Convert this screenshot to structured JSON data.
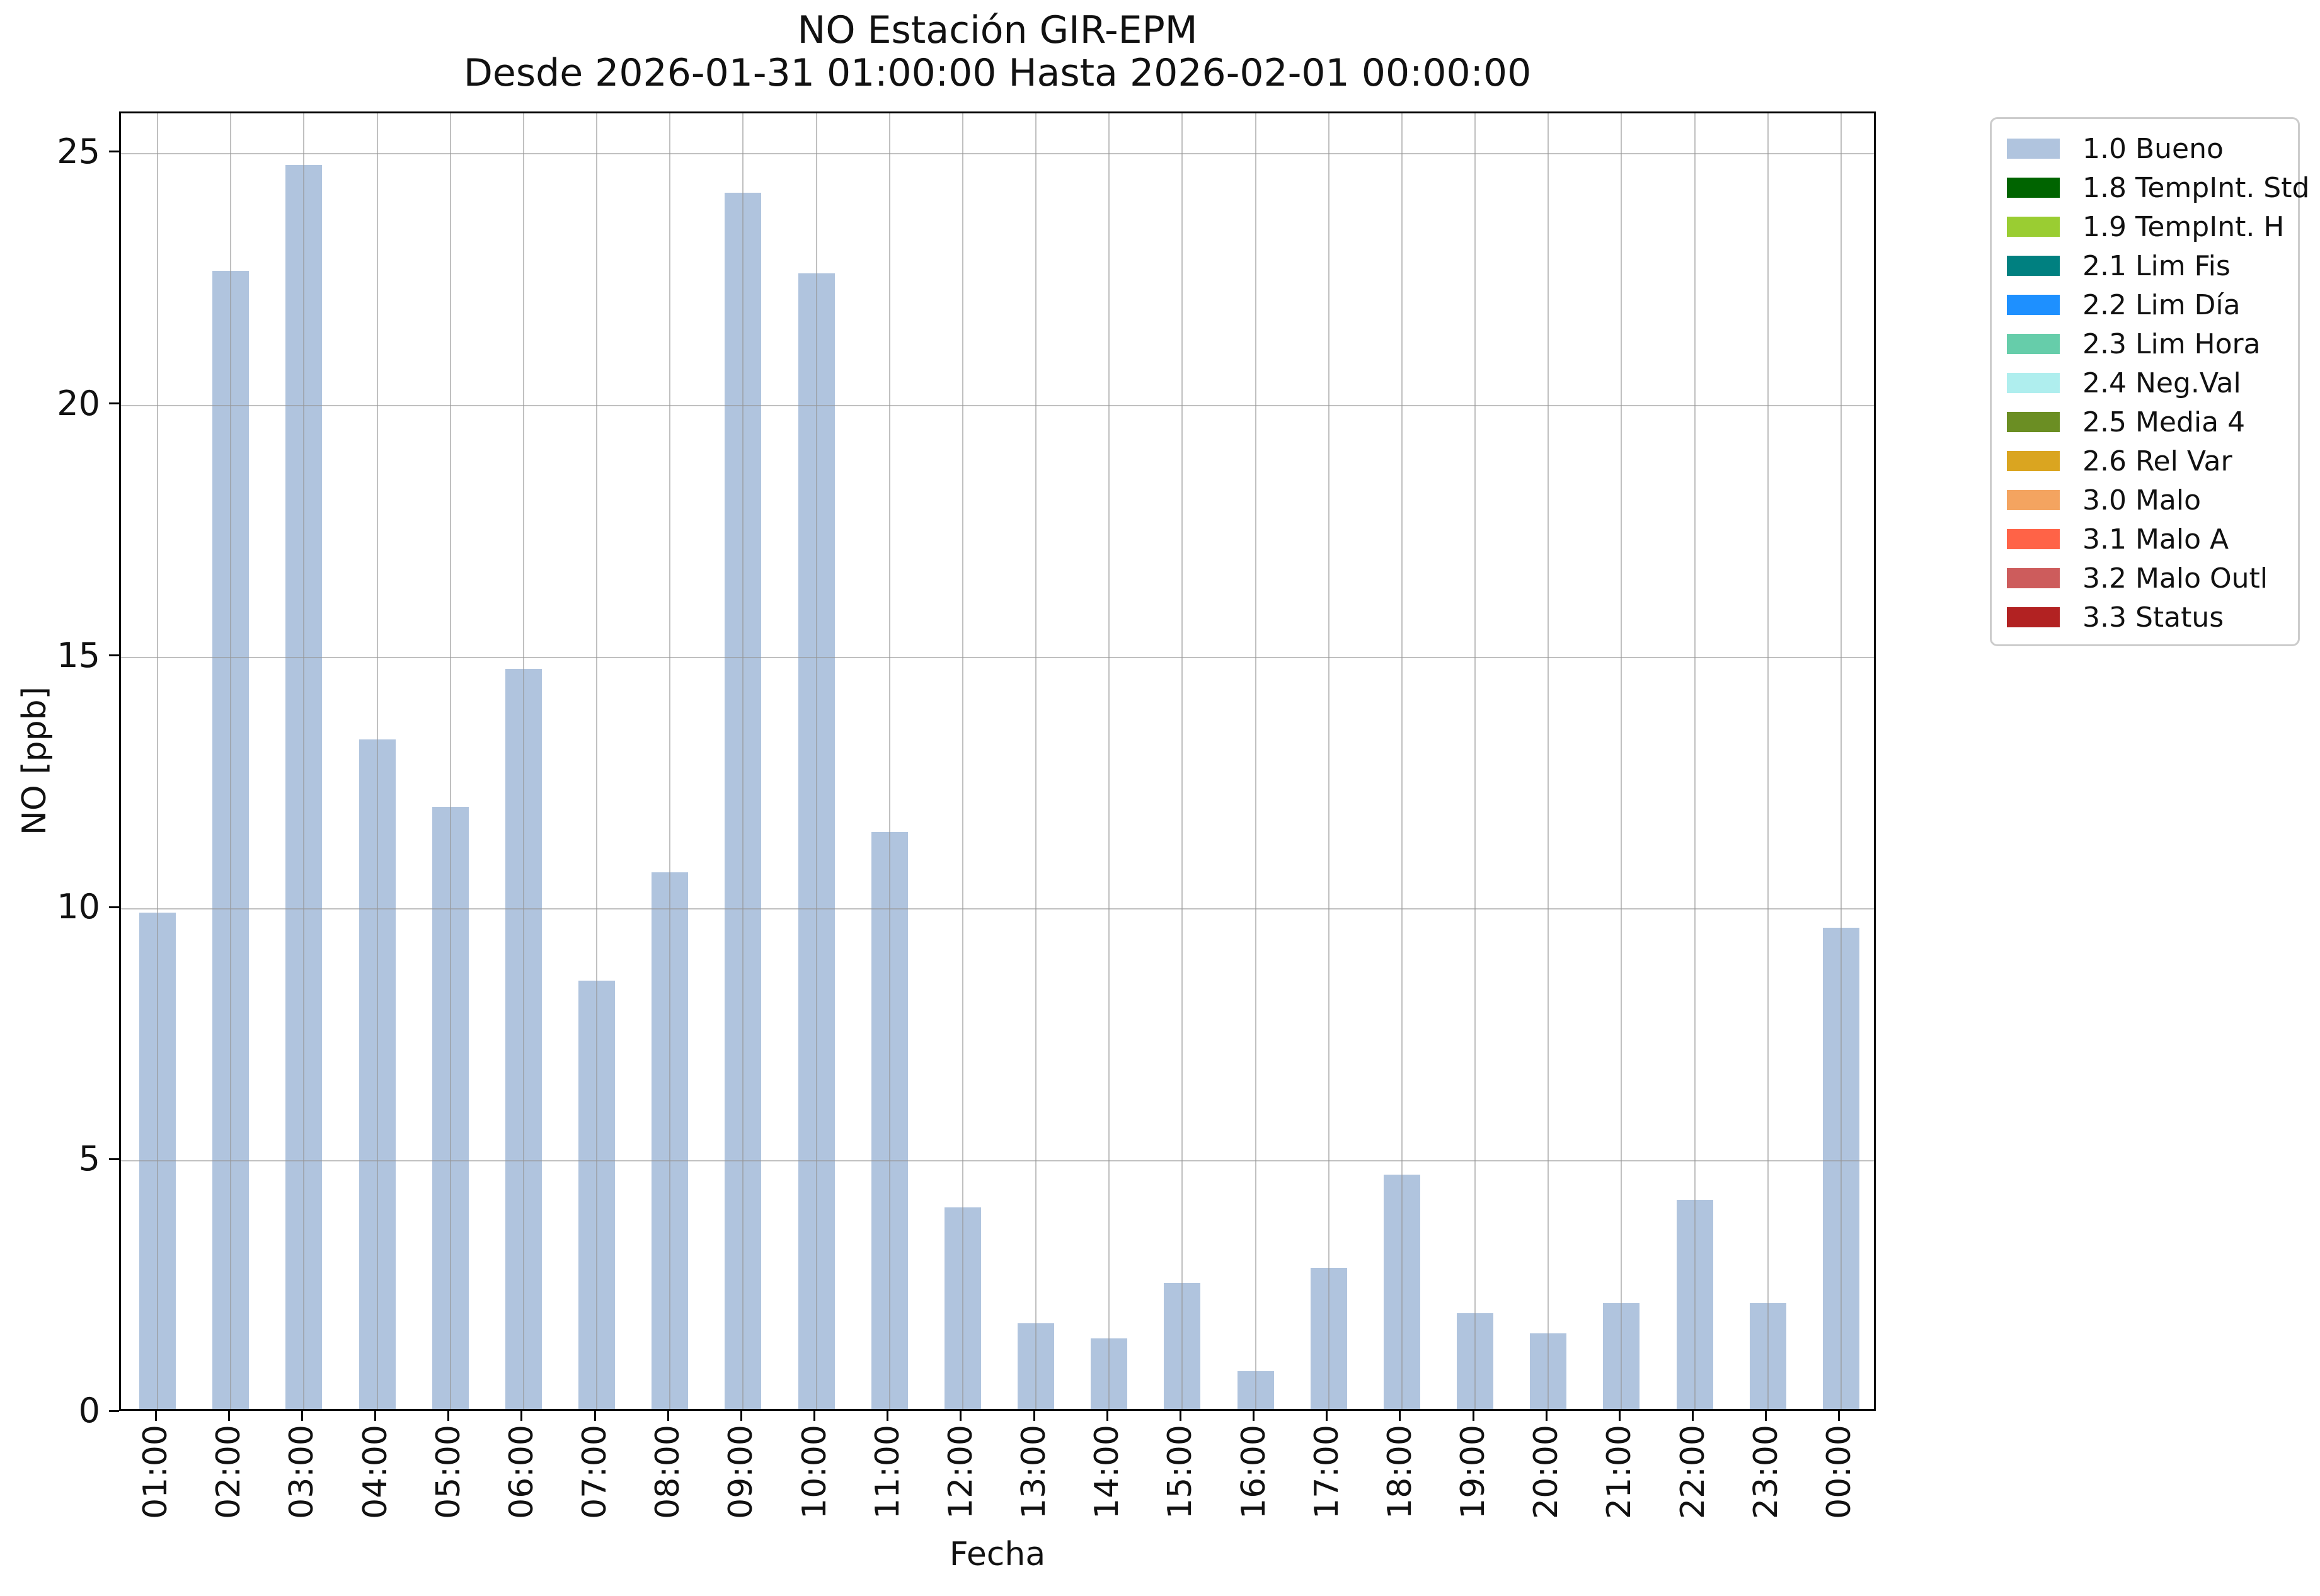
{
  "chart_data": {
    "type": "bar",
    "title": "NO Estación GIR-EPM",
    "subtitle": "Desde 2026-01-31 01:00:00 Hasta 2026-02-01 00:00:00",
    "xlabel": "Fecha",
    "ylabel": "NO [ppb]",
    "categories": [
      "01:00",
      "02:00",
      "03:00",
      "04:00",
      "05:00",
      "06:00",
      "07:00",
      "08:00",
      "09:00",
      "10:00",
      "11:00",
      "12:00",
      "13:00",
      "14:00",
      "15:00",
      "16:00",
      "17:00",
      "18:00",
      "19:00",
      "20:00",
      "21:00",
      "22:00",
      "23:00",
      "00:00"
    ],
    "values": [
      9.85,
      22.6,
      24.7,
      13.3,
      11.95,
      14.7,
      8.5,
      10.65,
      24.15,
      22.55,
      11.45,
      4.0,
      1.7,
      1.4,
      2.5,
      0.75,
      2.8,
      4.65,
      1.9,
      1.5,
      2.1,
      4.15,
      2.1,
      9.55
    ],
    "series_name": "1.0 Bueno",
    "bar_color": "#b0c4de",
    "ylim": [
      0,
      25.8
    ],
    "yticks": [
      0,
      5,
      10,
      15,
      20,
      25
    ],
    "grid": true,
    "grid_color": "#969696",
    "legend_position": "outside-upper-right",
    "legend": [
      {
        "label": "1.0 Bueno",
        "color": "#b0c4de"
      },
      {
        "label": "1.8 TempInt. Std",
        "color": "#006400"
      },
      {
        "label": "1.9 TempInt. H",
        "color": "#9acd32"
      },
      {
        "label": "2.1 Lim Fis",
        "color": "#008080"
      },
      {
        "label": "2.2 Lim Día",
        "color": "#1e90ff"
      },
      {
        "label": "2.3 Lim Hora",
        "color": "#66cdaa"
      },
      {
        "label": "2.4 Neg.Val",
        "color": "#afeeee"
      },
      {
        "label": "2.5 Media 4",
        "color": "#6b8e23"
      },
      {
        "label": "2.6 Rel Var",
        "color": "#daa520"
      },
      {
        "label": "3.0 Malo",
        "color": "#f4a460"
      },
      {
        "label": "3.1 Malo A",
        "color": "#ff6347"
      },
      {
        "label": "3.2 Malo Outl",
        "color": "#cd5c5c"
      },
      {
        "label": "3.3 Status",
        "color": "#b22222"
      }
    ]
  }
}
